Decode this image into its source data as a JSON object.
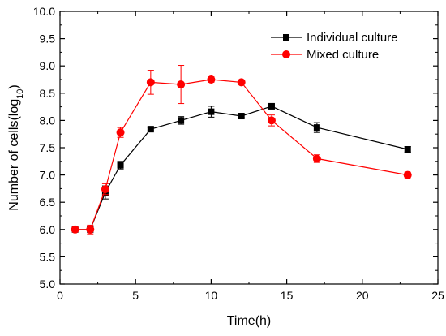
{
  "chart_data": {
    "type": "line",
    "xlabel": "Time(h)",
    "ylabel": {
      "prefix": "Number of cells(log",
      "subscript": "10",
      "suffix": ")"
    },
    "xlim": [
      0,
      25
    ],
    "ylim": [
      5.0,
      10.0
    ],
    "xticks": [
      0,
      5,
      10,
      15,
      20,
      25
    ],
    "xtick_labels": [
      "0",
      "5",
      "10",
      "15",
      "20",
      "25"
    ],
    "yticks": [
      5.0,
      5.5,
      6.0,
      6.5,
      7.0,
      7.5,
      8.0,
      8.5,
      9.0,
      9.5,
      10.0
    ],
    "ytick_labels": [
      "5.0",
      "5.5",
      "6.0",
      "6.5",
      "7.0",
      "7.5",
      "8.0",
      "8.5",
      "9.0",
      "9.5",
      "10.0"
    ],
    "grid": false,
    "legend_position": "top-right",
    "series": [
      {
        "name": "Individual culture",
        "color": "#000000",
        "marker": "square",
        "x": [
          1,
          2,
          3,
          4,
          6,
          8,
          10,
          12,
          14,
          17,
          23
        ],
        "y": [
          6.0,
          6.0,
          6.68,
          7.18,
          7.84,
          8.0,
          8.16,
          8.08,
          8.26,
          7.87,
          7.47
        ],
        "error": [
          0.03,
          0.05,
          0.12,
          0.07,
          0.03,
          0.07,
          0.1,
          0.03,
          0.03,
          0.09,
          0.05
        ]
      },
      {
        "name": "Mixed culture",
        "color": "#ff0000",
        "marker": "circle",
        "x": [
          1,
          2,
          3,
          4,
          6,
          8,
          10,
          12,
          14,
          17,
          23
        ],
        "y": [
          6.0,
          6.0,
          6.74,
          7.78,
          8.7,
          8.66,
          8.75,
          8.7,
          8.0,
          7.3,
          7.0
        ],
        "error": [
          0.03,
          0.08,
          0.1,
          0.09,
          0.22,
          0.35,
          0.05,
          0.03,
          0.1,
          0.07,
          0.05
        ]
      }
    ]
  }
}
